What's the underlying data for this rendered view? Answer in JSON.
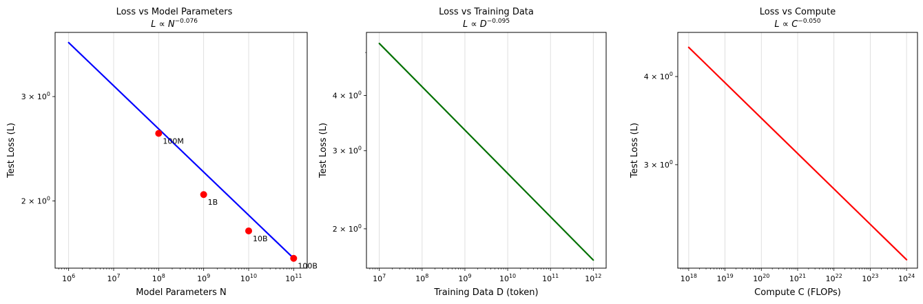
{
  "chart_data": [
    {
      "type": "line",
      "title": "Loss vs Model Parameters",
      "subtitle": {
        "base": "L ∝ N",
        "exp": "−0.076"
      },
      "xlabel": "Model Parameters N",
      "ylabel": "Test Loss (L)",
      "x_scale": "log",
      "y_scale": "log",
      "xlim": [
        500000,
        200000000000
      ],
      "ylim": [
        1.54,
        3.85
      ],
      "x_ticks": [
        {
          "value": 1000000,
          "base": "10",
          "exp": "6"
        },
        {
          "value": 10000000,
          "base": "10",
          "exp": "7"
        },
        {
          "value": 100000000,
          "base": "10",
          "exp": "8"
        },
        {
          "value": 1000000000,
          "base": "10",
          "exp": "9"
        },
        {
          "value": 10000000000,
          "base": "10",
          "exp": "10"
        },
        {
          "value": 100000000000,
          "base": "10",
          "exp": "11"
        }
      ],
      "y_ticks": [
        {
          "value": 2,
          "mant": "2 × 10",
          "exp": "0"
        },
        {
          "value": 3,
          "mant": "3 × 10",
          "exp": "0"
        }
      ],
      "grid": "x-major",
      "series": [
        {
          "x": [
            1000000,
            100000000000
          ],
          "y": [
            3.7,
            1.6
          ],
          "color": "#0000ff"
        }
      ],
      "points": {
        "color": "#ff0000",
        "x": [
          100000000,
          1000000000,
          10000000000,
          100000000000
        ],
        "y": [
          2.6,
          2.05,
          1.78,
          1.6
        ],
        "labels": [
          "100M",
          "1B",
          "10B",
          "100B"
        ]
      }
    },
    {
      "type": "line",
      "title": "Loss vs Training Data",
      "subtitle": {
        "base": "L ∝ D",
        "exp": "−0.095"
      },
      "xlabel": "Training Data D (token)",
      "ylabel": "Test Loss (L)",
      "x_scale": "log",
      "y_scale": "log",
      "xlim": [
        5000000,
        2000000000000
      ],
      "ylim": [
        1.63,
        5.55
      ],
      "x_ticks": [
        {
          "value": 10000000,
          "base": "10",
          "exp": "7"
        },
        {
          "value": 100000000,
          "base": "10",
          "exp": "8"
        },
        {
          "value": 1000000000,
          "base": "10",
          "exp": "9"
        },
        {
          "value": 10000000000,
          "base": "10",
          "exp": "10"
        },
        {
          "value": 100000000000,
          "base": "10",
          "exp": "11"
        },
        {
          "value": 1000000000000,
          "base": "10",
          "exp": "12"
        }
      ],
      "y_ticks": [
        {
          "value": 2,
          "mant": "2 × 10",
          "exp": "0"
        },
        {
          "value": 3,
          "mant": "3 × 10",
          "exp": "0"
        },
        {
          "value": 4,
          "mant": "4 × 10",
          "exp": "0"
        }
      ],
      "grid": "x-major",
      "series": [
        {
          "x": [
            10000000,
            1000000000000
          ],
          "y": [
            5.24,
            1.7
          ],
          "color": "#007000"
        }
      ]
    },
    {
      "type": "line",
      "title": "Loss vs Compute",
      "subtitle": {
        "base": "L ∝ C",
        "exp": "−0.050"
      },
      "xlabel": "Compute C (FLOPs)",
      "ylabel": "Test Loss (L)",
      "x_scale": "log",
      "y_scale": "log",
      "xlim": [
        500000000000000000,
        2e+24
      ],
      "ylim": [
        2.14,
        4.62
      ],
      "x_ticks": [
        {
          "value": 1e+18,
          "base": "10",
          "exp": "18"
        },
        {
          "value": 1e+19,
          "base": "10",
          "exp": "19"
        },
        {
          "value": 1e+20,
          "base": "10",
          "exp": "20"
        },
        {
          "value": 1e+21,
          "base": "10",
          "exp": "21"
        },
        {
          "value": 1e+22,
          "base": "10",
          "exp": "22"
        },
        {
          "value": 1e+23,
          "base": "10",
          "exp": "23"
        },
        {
          "value": 1e+24,
          "base": "10",
          "exp": "24"
        }
      ],
      "y_ticks": [
        {
          "value": 3,
          "mant": "3 × 10",
          "exp": "0"
        },
        {
          "value": 4,
          "mant": "4 × 10",
          "exp": "0"
        }
      ],
      "grid": "x-major",
      "series": [
        {
          "x": [
            1e+18,
            1e+24
          ],
          "y": [
            4.4,
            2.2
          ],
          "color": "#ff0000"
        }
      ]
    }
  ]
}
